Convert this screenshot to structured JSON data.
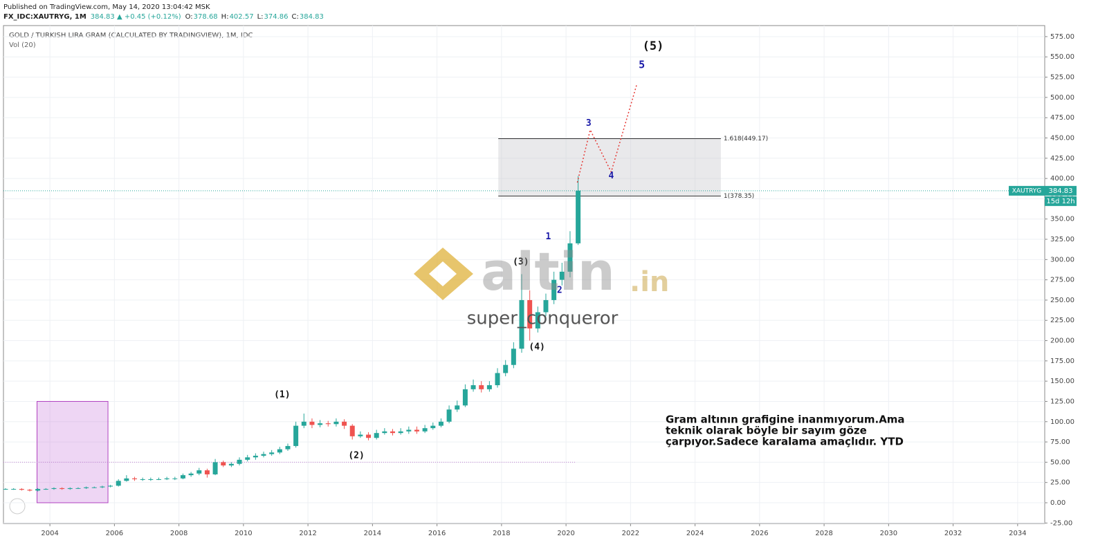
{
  "header": {
    "published": "Published on TradingView.com, May 14, 2020 13:04:42 MSK",
    "symbol": "FX_IDC:XAUTRYG, 1M",
    "quote": "384.83 ▲ +0.45 (+0.12%)",
    "ohlc": [
      {
        "label": "O:",
        "value": "378.68"
      },
      {
        "label": "H:",
        "value": "402.57"
      },
      {
        "label": "L:",
        "value": "374.86"
      },
      {
        "label": "C:",
        "value": "384.83"
      }
    ]
  },
  "chart_data": {
    "type": "candlestick",
    "title": "GOLD / TURKISH LIRA GRAM (CALCULATED BY TRADINGVIEW), 1M, IDC",
    "indicator": "Vol (20)",
    "up_color": "#26a69a",
    "down_color": "#ef5350",
    "x": [
      2002.625,
      2002.875,
      2003.125,
      2003.375,
      2003.625,
      2003.875,
      2004.125,
      2004.375,
      2004.625,
      2004.875,
      2005.125,
      2005.375,
      2005.625,
      2005.875,
      2006.125,
      2006.375,
      2006.625,
      2006.875,
      2007.125,
      2007.375,
      2007.625,
      2007.875,
      2008.125,
      2008.375,
      2008.625,
      2008.875,
      2009.125,
      2009.375,
      2009.625,
      2009.875,
      2010.125,
      2010.375,
      2010.625,
      2010.875,
      2011.125,
      2011.375,
      2011.625,
      2011.875,
      2012.125,
      2012.375,
      2012.625,
      2012.875,
      2013.125,
      2013.375,
      2013.625,
      2013.875,
      2014.125,
      2014.375,
      2014.625,
      2014.875,
      2015.125,
      2015.375,
      2015.625,
      2015.875,
      2016.125,
      2016.375,
      2016.625,
      2016.875,
      2017.125,
      2017.375,
      2017.625,
      2017.875,
      2018.125,
      2018.375,
      2018.625,
      2018.875,
      2019.125,
      2019.375,
      2019.625,
      2019.875,
      2020.125,
      2020.375
    ],
    "open": [
      17,
      17,
      17,
      16,
      15,
      17,
      17,
      18,
      17,
      18,
      18,
      19,
      19,
      20,
      21,
      27,
      30,
      29,
      29,
      29,
      29,
      30,
      30,
      34,
      36,
      40,
      35,
      50,
      46,
      48,
      53,
      56,
      58,
      60,
      62,
      66,
      70,
      95,
      100,
      96,
      98,
      97,
      100,
      95,
      82,
      84,
      80,
      86,
      88,
      86,
      88,
      90,
      88,
      92,
      95,
      100,
      115,
      120,
      140,
      145,
      140,
      145,
      160,
      170,
      190,
      250,
      215,
      235,
      250,
      275,
      285,
      320
    ],
    "high": [
      18,
      18,
      18,
      17,
      18,
      18,
      19,
      19,
      19,
      19,
      20,
      20,
      21,
      22,
      29,
      34,
      32,
      31,
      31,
      31,
      32,
      32,
      36,
      38,
      43,
      42,
      54,
      52,
      50,
      56,
      59,
      61,
      63,
      65,
      69,
      73,
      100,
      110,
      104,
      102,
      101,
      104,
      103,
      97,
      88,
      87,
      90,
      92,
      91,
      92,
      94,
      94,
      96,
      99,
      104,
      120,
      126,
      146,
      152,
      150,
      150,
      166,
      176,
      198,
      282,
      262,
      242,
      258,
      285,
      296,
      335,
      403
    ],
    "low": [
      16,
      16,
      15,
      14,
      14,
      16,
      16,
      16,
      16,
      17,
      17,
      18,
      18,
      19,
      20,
      26,
      27,
      27,
      27,
      28,
      28,
      28,
      29,
      32,
      34,
      31,
      34,
      44,
      44,
      46,
      51,
      53,
      56,
      58,
      60,
      64,
      68,
      92,
      92,
      93,
      94,
      94,
      91,
      78,
      80,
      77,
      78,
      84,
      83,
      84,
      85,
      85,
      86,
      90,
      93,
      98,
      112,
      118,
      137,
      136,
      137,
      142,
      156,
      166,
      185,
      200,
      210,
      230,
      245,
      268,
      278,
      318
    ],
    "close": [
      17,
      17,
      16,
      15,
      17,
      17,
      18,
      17,
      18,
      18,
      19,
      19,
      20,
      21,
      27,
      30,
      29,
      29,
      29,
      29,
      30,
      30,
      34,
      36,
      40,
      35,
      50,
      46,
      48,
      53,
      56,
      58,
      60,
      62,
      66,
      70,
      95,
      100,
      96,
      98,
      97,
      100,
      95,
      82,
      84,
      80,
      86,
      88,
      86,
      88,
      90,
      88,
      92,
      95,
      100,
      115,
      120,
      140,
      145,
      140,
      145,
      160,
      170,
      190,
      250,
      215,
      235,
      250,
      275,
      285,
      320,
      385
    ],
    "xlim": [
      2002.56,
      2034.84
    ],
    "xticks": [
      2004,
      2006,
      2008,
      2010,
      2012,
      2014,
      2016,
      2018,
      2020,
      2022,
      2024,
      2026,
      2028,
      2030,
      2032,
      2034
    ],
    "ylim": [
      -25.6,
      588.6
    ],
    "yticks": [
      {
        "value": -25,
        "label": "-25.00"
      },
      {
        "value": 0,
        "label": "0.00"
      },
      {
        "value": 25,
        "label": "25.00"
      },
      {
        "value": 50,
        "label": "50.00"
      },
      {
        "value": 75,
        "label": "75.00"
      },
      {
        "value": 100,
        "label": "100.00"
      },
      {
        "value": 125,
        "label": "125.00"
      },
      {
        "value": 150,
        "label": "150.00"
      },
      {
        "value": 175,
        "label": "175.00"
      },
      {
        "value": 200,
        "label": "200.00"
      },
      {
        "value": 225,
        "label": "225.00"
      },
      {
        "value": 250,
        "label": "250.00"
      },
      {
        "value": 275,
        "label": "275.00"
      },
      {
        "value": 300,
        "label": "300.00"
      },
      {
        "value": 325,
        "label": "325.00"
      },
      {
        "value": 350,
        "label": "350.00"
      },
      {
        "value": 375,
        "label": "375.00"
      },
      {
        "value": 400,
        "label": "400.00"
      },
      {
        "value": 425,
        "label": "425.00"
      },
      {
        "value": 450,
        "label": "450.00"
      },
      {
        "value": 475,
        "label": "475.00"
      },
      {
        "value": 500,
        "label": "500.00"
      },
      {
        "value": 525,
        "label": "525.00"
      },
      {
        "value": 550,
        "label": "550.00"
      },
      {
        "value": 575,
        "label": "575.00"
      }
    ],
    "grid": true,
    "fib_levels": [
      {
        "value": 449.17,
        "label": "1.618(449.17)"
      },
      {
        "value": 378.35,
        "label": "1(378.35)"
      }
    ],
    "last_price": 384.83,
    "symbol_label": "XAUTRYG",
    "countdown": "15d 12h",
    "wave_labels": [
      "(1)",
      "(2)",
      "(3)",
      "(4)",
      "(5)",
      "1",
      "2",
      "3",
      "4",
      "5"
    ],
    "annotation": [
      "Gram altının grafigine inanmıyorum.Ama",
      "teknik olarak böyle bir sayım göze",
      "çarpıyor.Sadece karalama amaçlıdır. YTD"
    ],
    "watermark": {
      "brand": "altin",
      "domain": ".in",
      "author": "super_conqueror"
    }
  }
}
